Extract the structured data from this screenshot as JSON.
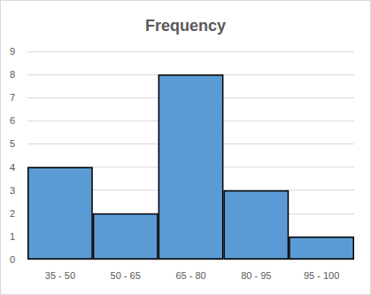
{
  "chart_data": {
    "type": "bar",
    "title": "Frequency",
    "categories": [
      "35 - 50",
      "50 - 65",
      "65 - 80",
      "80 - 95",
      "95 - 100"
    ],
    "values": [
      4,
      2,
      8,
      3,
      1
    ],
    "color": "#5b9bd5",
    "ylim": [
      0,
      9
    ],
    "yticks": [
      0,
      1,
      2,
      3,
      4,
      5,
      6,
      7,
      8,
      9
    ],
    "grid": true
  }
}
